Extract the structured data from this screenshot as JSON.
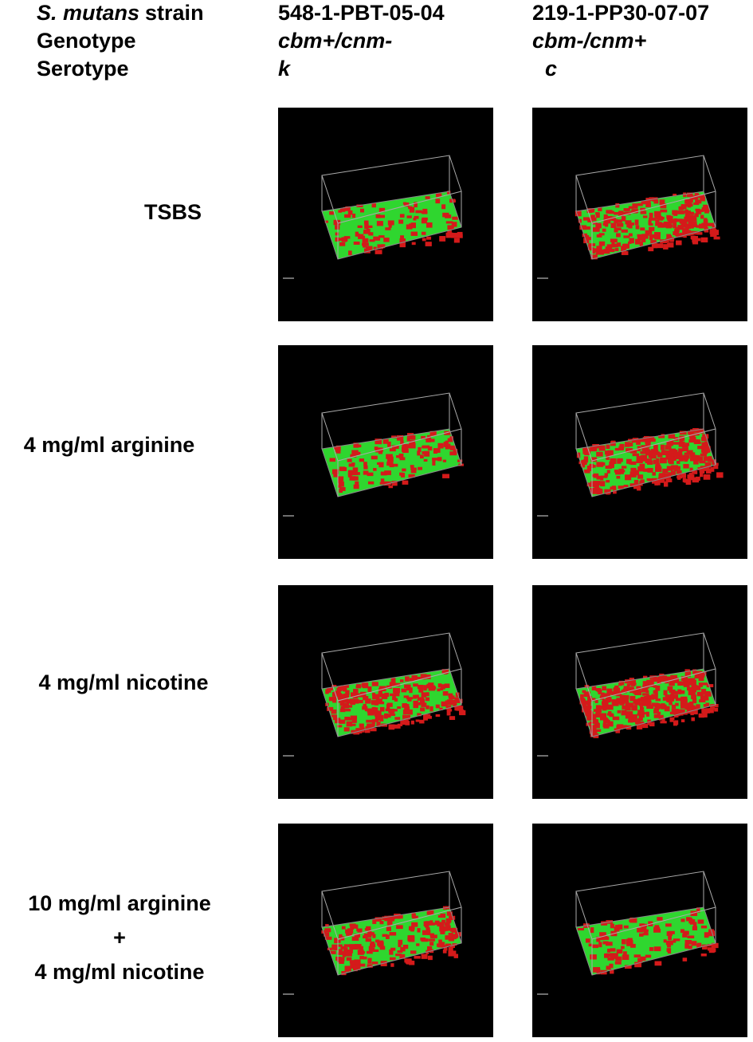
{
  "header": {
    "strain_label": {
      "species": "S. mutans",
      "text": "strain"
    },
    "genotype_label": "Genotype",
    "serotype_label": "Serotype",
    "columns": [
      {
        "strain": "548-1-PBT-05-04",
        "genotype": "cbm+/cnm-",
        "serotype": "k"
      },
      {
        "strain": "219-1-PP30-07-07",
        "genotype": "cbm-/cnm+",
        "serotype": "c"
      }
    ]
  },
  "rows": [
    {
      "label": [
        "TSBS"
      ]
    },
    {
      "label": [
        "4 mg/ml arginine"
      ]
    },
    {
      "label": [
        "4 mg/ml nicotine"
      ]
    },
    {
      "label": [
        "10 mg/ml arginine",
        "+",
        "4 mg/ml nicotine"
      ]
    }
  ]
}
